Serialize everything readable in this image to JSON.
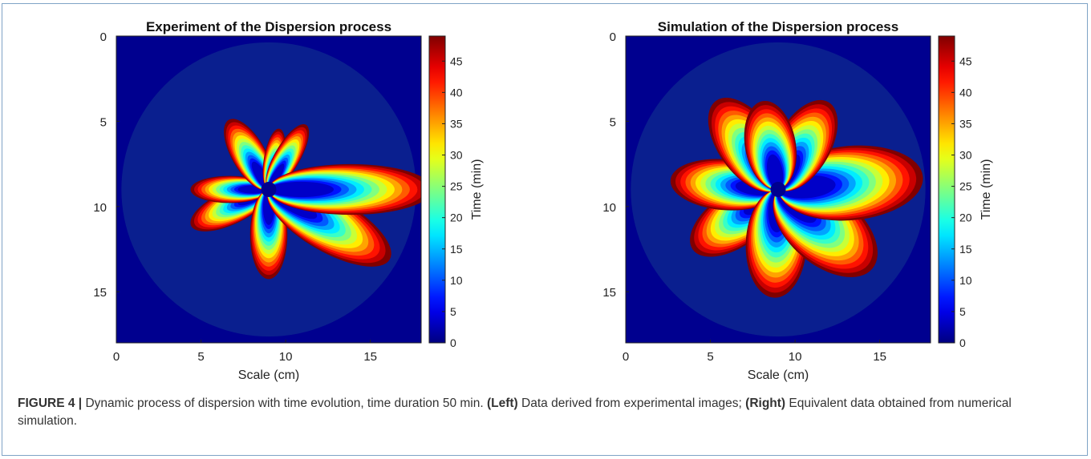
{
  "colors": {
    "frame_border": "#7fa3c6",
    "background_blue": "#0a1f8f",
    "outer_dark_blue": "#00008f",
    "colormap": "jet"
  },
  "chart_data": [
    {
      "type": "heatmap",
      "title": "Experiment of the Dispersion process",
      "xlabel": "Scale (cm)",
      "ylabel": "",
      "xlim": [
        0,
        18
      ],
      "ylim": [
        18,
        0
      ],
      "x_ticks": [
        "0",
        "5",
        "10",
        "15"
      ],
      "y_ticks": [
        "0",
        "5",
        "10",
        "15"
      ],
      "colorbar": {
        "label": "Time (min)",
        "range": [
          0,
          49
        ],
        "ticks": [
          "0",
          "5",
          "10",
          "15",
          "20",
          "25",
          "30",
          "35",
          "40",
          "45"
        ]
      },
      "center": [
        9,
        9
      ],
      "lobes": [
        {
          "angle_deg": -155,
          "length_cm": 4.6,
          "width_cm": 2.0
        },
        {
          "angle_deg": 180,
          "length_cm": 4.2,
          "width_cm": 1.6
        },
        {
          "angle_deg": 120,
          "length_cm": 4.3,
          "width_cm": 2.0
        },
        {
          "angle_deg": 80,
          "length_cm": 3.3,
          "width_cm": 1.2
        },
        {
          "angle_deg": 60,
          "length_cm": 4.0,
          "width_cm": 1.5
        },
        {
          "angle_deg": -90,
          "length_cm": 4.8,
          "width_cm": 2.2
        },
        {
          "angle_deg": -30,
          "length_cm": 7.5,
          "width_cm": 3.2
        },
        {
          "angle_deg": 0,
          "length_cm": 8.8,
          "width_cm": 3.0
        }
      ]
    },
    {
      "type": "heatmap",
      "title": "Simulation of the Dispersion process",
      "xlabel": "Scale (cm)",
      "ylabel": "",
      "xlim": [
        0,
        18
      ],
      "ylim": [
        18,
        0
      ],
      "x_ticks": [
        "0",
        "5",
        "10",
        "15"
      ],
      "y_ticks": [
        "0",
        "5",
        "10",
        "15"
      ],
      "colorbar": {
        "label": "Time (min)",
        "range": [
          0,
          49
        ],
        "ticks": [
          "0",
          "5",
          "10",
          "15",
          "20",
          "25",
          "30",
          "35",
          "40",
          "45"
        ]
      },
      "center": [
        9,
        9
      ],
      "lobes": [
        {
          "angle_deg": -145,
          "length_cm": 5.6,
          "width_cm": 3.2
        },
        {
          "angle_deg": 175,
          "length_cm": 5.8,
          "width_cm": 3.0
        },
        {
          "angle_deg": 125,
          "length_cm": 5.8,
          "width_cm": 3.4
        },
        {
          "angle_deg": -92,
          "length_cm": 5.8,
          "width_cm": 3.6
        },
        {
          "angle_deg": -40,
          "length_cm": 6.6,
          "width_cm": 4.2
        },
        {
          "angle_deg": 5,
          "length_cm": 7.8,
          "width_cm": 4.4
        },
        {
          "angle_deg": 60,
          "length_cm": 5.4,
          "width_cm": 3.2
        },
        {
          "angle_deg": 100,
          "length_cm": 4.8,
          "width_cm": 3.0
        }
      ]
    }
  ],
  "caption": {
    "label": "FIGURE 4 |",
    "text1": " Dynamic process of dispersion with time evolution, time duration 50 min. ",
    "left_bold": "(Left)",
    "text2": " Data derived from experimental images; ",
    "right_bold": "(Right)",
    "text3": " Equivalent data obtained from numerical simulation."
  }
}
